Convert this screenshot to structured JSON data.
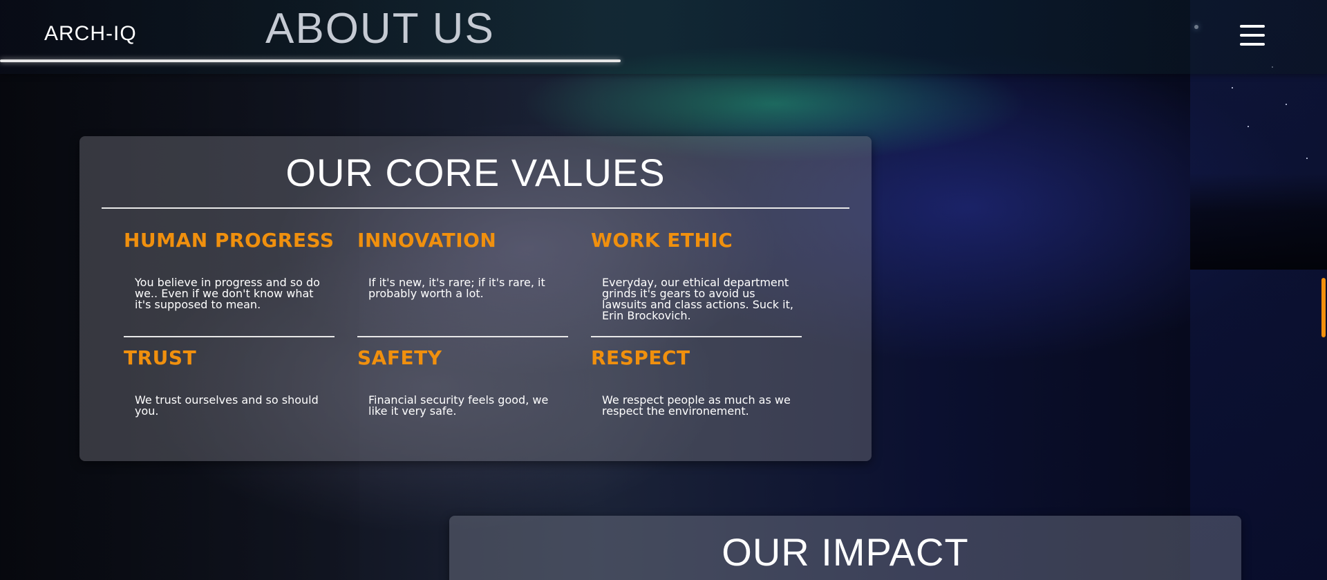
{
  "navbar": {
    "brand": "ARCH-IQ",
    "page_heading": "ABOUT US",
    "menu_icon": "hamburger-menu-icon"
  },
  "core_values": {
    "title": "OUR CORE VALUES",
    "items": [
      {
        "title": "HUMAN PROGRESS",
        "text": "You believe in progress and so do we.. Even if we don't know what it's supposed to mean."
      },
      {
        "title": "INNOVATION",
        "text": "If it's new, it's rare; if it's rare, it probably worth a lot."
      },
      {
        "title": "WORK ETHIC",
        "text": "Everyday, our ethical department grinds it's gears to avoid us lawsuits and class actions. Suck it, Erin Brockovich."
      },
      {
        "title": "TRUST",
        "text": "We trust ourselves and so should you."
      },
      {
        "title": "SAFETY",
        "text": "Financial security feels good, we like it very safe."
      },
      {
        "title": "RESPECT",
        "text": "We respect people as much as we respect the environement."
      }
    ]
  },
  "impact": {
    "title": "OUR IMPACT"
  },
  "colors": {
    "accent": "#f0900e",
    "text": "#ffffff"
  }
}
